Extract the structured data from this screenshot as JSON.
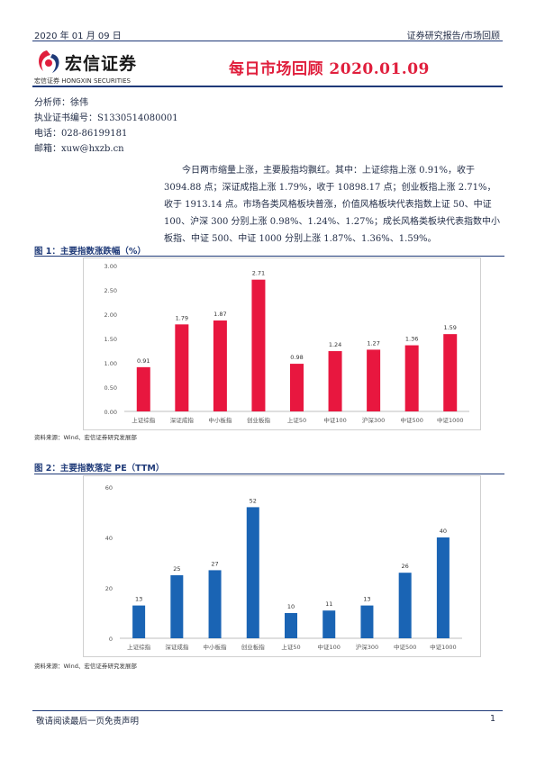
{
  "header": {
    "date": "2020 年 01 月 09 日",
    "category": "证券研究报告/市场回顾",
    "logo_text": "宏信证券",
    "logo_subtext": "宏信证券  HONGXIN SECURITIES",
    "title": "每日市场回顾 2020.01.09",
    "title_color": "#e01e3c",
    "accent_color": "#1f3a78"
  },
  "analyst": {
    "name": "分析师：徐伟",
    "license": "执业证书编号：S1330514080001",
    "phone": "电话：028-86199181",
    "email": "邮箱：xuw@hxzb.cn"
  },
  "summary": "今日两市缩量上涨，主要股指均飘红。其中：上证综指上涨 0.91%，收于 3094.88 点；深证成指上涨 1.79%，收于 10898.17 点；创业板指上涨 2.71%，收于 1913.14 点。市场各类风格板块普涨，价值风格板块代表指数上证 50、中证 100、沪深 300 分别上涨 0.98%、1.24%、1.27%；成长风格类板块代表指数中小板指、中证 500、中证 1000 分别上涨 1.87%、1.36%、1.59%。",
  "figure1": {
    "title": "图 1：主要指数涨跌幅（%）",
    "source": "资料来源：Wind、宏信证券研究发展部"
  },
  "figure2": {
    "title": "图 2：主要指数落定 PE（TTM）",
    "source": "资料来源：Wind、宏信证券研究发展部"
  },
  "chart_data": [
    {
      "type": "bar",
      "categories": [
        "上证综指",
        "深证成指",
        "中小板指",
        "创业板指",
        "上证50",
        "中证100",
        "沪深300",
        "中证500",
        "中证1000"
      ],
      "values": [
        0.91,
        1.79,
        1.87,
        2.71,
        0.98,
        1.24,
        1.27,
        1.36,
        1.59
      ],
      "value_labels": [
        "0.91",
        "1.79",
        "1.87",
        "2.71",
        "0.98",
        "1.24",
        "1.27",
        "1.36",
        "1.59"
      ],
      "yticks": [
        "0.00",
        "0.50",
        "1.00",
        "1.50",
        "2.00",
        "2.50",
        "3.00"
      ],
      "ylim": [
        0,
        3
      ],
      "grid": false,
      "bar_color": "#e8173f"
    },
    {
      "type": "bar",
      "categories": [
        "上证综指",
        "深证成指",
        "中小板指",
        "创业板指",
        "上证50",
        "中证100",
        "沪深300",
        "中证500",
        "中证1000"
      ],
      "values": [
        13,
        25,
        27,
        52,
        10,
        11,
        13,
        26,
        40
      ],
      "value_labels": [
        "13",
        "25",
        "27",
        "52",
        "10",
        "11",
        "13",
        "26",
        "40"
      ],
      "yticks": [
        "0",
        "20",
        "40",
        "60"
      ],
      "ylim": [
        0,
        60
      ],
      "grid": false,
      "bar_color": "#1a64b4"
    }
  ],
  "footer": {
    "disclaimer": "敬请阅读最后一页免责声明",
    "page": "1"
  }
}
